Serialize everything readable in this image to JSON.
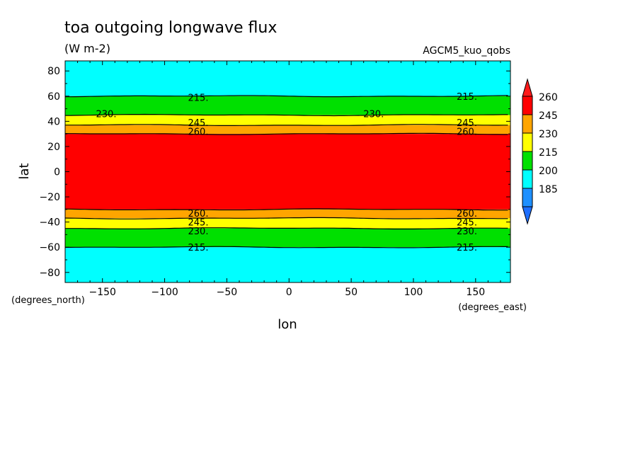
{
  "chart_data": {
    "type": "contour",
    "title": "toa outgoing longwave flux",
    "units": "(W m-2)",
    "dataset": "AGCM5_kuo_qobs",
    "xlabel": "lon",
    "ylabel": "lat",
    "x_units": "(degrees_east)",
    "y_units": "(degrees_north)",
    "xlim": [
      -180,
      178
    ],
    "ylim": [
      -88,
      88
    ],
    "x_ticks": [
      -150,
      -100,
      -50,
      0,
      50,
      100,
      150
    ],
    "y_ticks": [
      80,
      60,
      40,
      20,
      0,
      -20,
      -40,
      -60,
      -80
    ],
    "colorbar": {
      "levels": [
        185,
        200,
        215,
        230,
        245,
        260
      ],
      "colors": [
        "#1e90ff",
        "#00ffff",
        "#00e000",
        "#ffff00",
        "#ffa500",
        "#ff0000"
      ],
      "under_color": "#1e6fff",
      "over_color": "#ff1a1a"
    },
    "bands": [
      {
        "lat_range": [
          60,
          88
        ],
        "value_range": "200-215",
        "color": "#00ffff"
      },
      {
        "lat_range": [
          45,
          60
        ],
        "value_range": "215-230",
        "color": "#00e000"
      },
      {
        "lat_range": [
          37,
          45
        ],
        "value_range": "230-245",
        "color": "#ffff00"
      },
      {
        "lat_range": [
          30,
          37
        ],
        "value_range": "245-260",
        "color": "#ffa500"
      },
      {
        "lat_range": [
          -30,
          30
        ],
        "value_range": ">260",
        "color": "#ff0000"
      },
      {
        "lat_range": [
          -37,
          -30
        ],
        "value_range": "245-260",
        "color": "#ffa500"
      },
      {
        "lat_range": [
          -45,
          -37
        ],
        "value_range": "230-245",
        "color": "#ffff00"
      },
      {
        "lat_range": [
          -60,
          -45
        ],
        "value_range": "215-230",
        "color": "#00e000"
      },
      {
        "lat_range": [
          -88,
          -60
        ],
        "value_range": "200-215",
        "color": "#00ffff"
      }
    ],
    "contour_labels": [
      {
        "text": "215.",
        "lon": -73,
        "lat": 59
      },
      {
        "text": "215.",
        "lon": 143,
        "lat": 60
      },
      {
        "text": "230.",
        "lon": -147,
        "lat": 46
      },
      {
        "text": "230.",
        "lon": 68,
        "lat": 46
      },
      {
        "text": "245.",
        "lon": -73,
        "lat": 39
      },
      {
        "text": "245.",
        "lon": 143,
        "lat": 39
      },
      {
        "text": "260.",
        "lon": -73,
        "lat": 32
      },
      {
        "text": "260.",
        "lon": 143,
        "lat": 32
      },
      {
        "text": "260.",
        "lon": -73,
        "lat": -33
      },
      {
        "text": "260.",
        "lon": 143,
        "lat": -33
      },
      {
        "text": "245.",
        "lon": -73,
        "lat": -40
      },
      {
        "text": "245.",
        "lon": 143,
        "lat": -40
      },
      {
        "text": "230.",
        "lon": -73,
        "lat": -47
      },
      {
        "text": "230.",
        "lon": 143,
        "lat": -47
      },
      {
        "text": "215.",
        "lon": -73,
        "lat": -60
      },
      {
        "text": "215.",
        "lon": 143,
        "lat": -60
      }
    ]
  }
}
